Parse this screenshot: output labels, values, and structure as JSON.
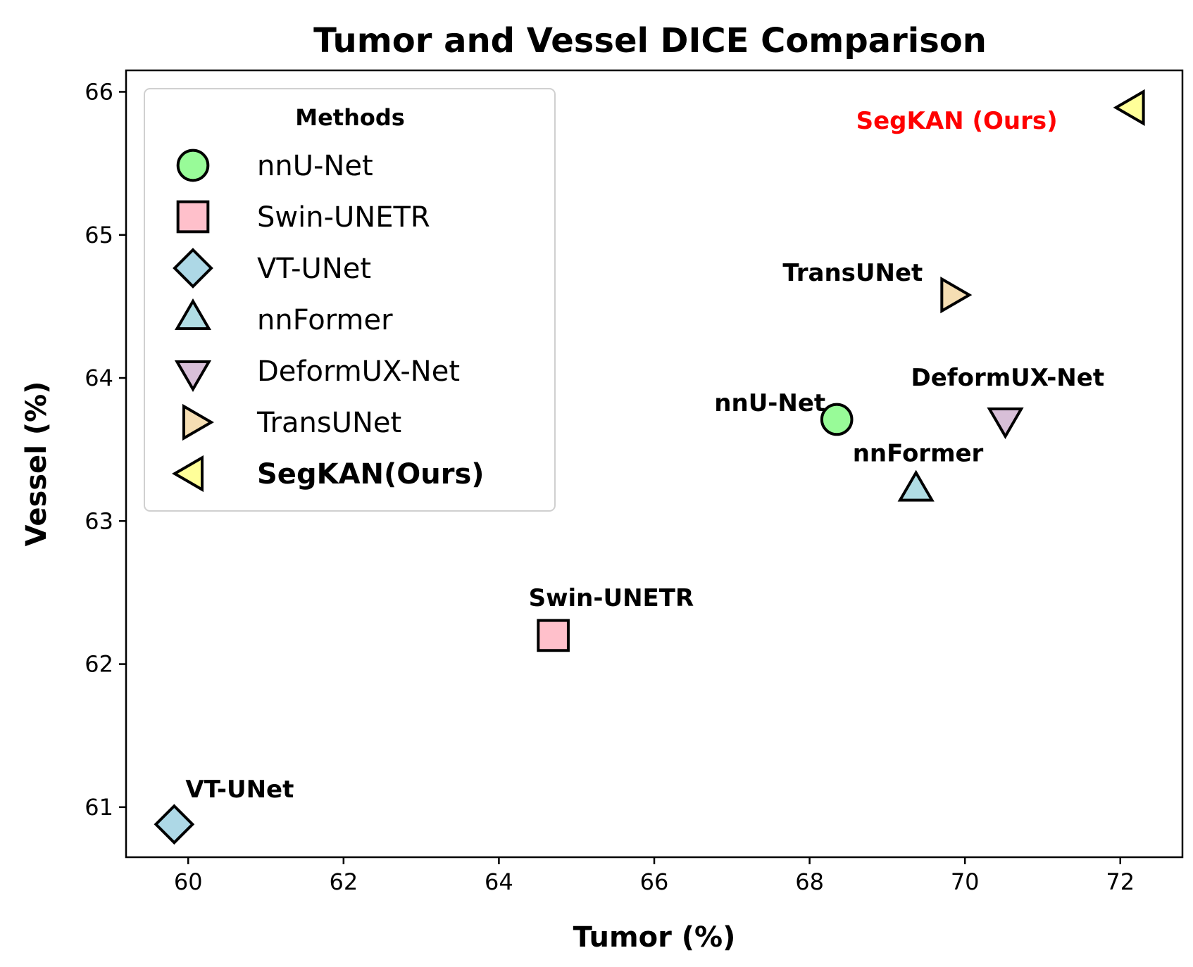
{
  "chart_data": {
    "type": "scatter",
    "title": "Tumor and Vessel DICE Comparison",
    "xlabel": "Tumor (%)",
    "ylabel": "Vessel (%)",
    "xlim": [
      59.2,
      72.8
    ],
    "ylim": [
      60.65,
      66.15
    ],
    "xticks": [
      60,
      62,
      64,
      66,
      68,
      70,
      72
    ],
    "yticks": [
      61,
      62,
      63,
      64,
      65,
      66
    ],
    "grid": false,
    "legend": {
      "title": "Methods",
      "placement": "upper-left"
    },
    "series": [
      {
        "name": "nnU-Net",
        "marker": "circle",
        "color": "#98fb98",
        "x": 68.35,
        "y": 63.71,
        "annotation": "nnU-Net",
        "annotation_color": "#000000",
        "label_bold": false
      },
      {
        "name": "Swin-UNETR",
        "marker": "square",
        "color": "#ffc0cb",
        "x": 64.7,
        "y": 62.2,
        "annotation": "Swin-UNETR",
        "annotation_color": "#000000",
        "label_bold": false
      },
      {
        "name": "VT-UNet",
        "marker": "diamond",
        "color": "#add8e6",
        "x": 59.82,
        "y": 60.88,
        "annotation": "VT-UNet",
        "annotation_color": "#000000",
        "label_bold": false
      },
      {
        "name": "nnFormer",
        "marker": "triangle-up",
        "color": "#b0dde4",
        "x": 69.37,
        "y": 63.21,
        "annotation": "nnFormer",
        "annotation_color": "#000000",
        "label_bold": false
      },
      {
        "name": "DeformUX-Net",
        "marker": "triangle-down",
        "color": "#d8bfd8",
        "x": 70.52,
        "y": 63.72,
        "annotation": "DeformUX-Net",
        "annotation_color": "#000000",
        "label_bold": false
      },
      {
        "name": "TransUNet",
        "marker": "triangle-right",
        "color": "#f5deb3",
        "x": 69.82,
        "y": 64.58,
        "annotation": "TransUNet",
        "annotation_color": "#000000",
        "label_bold": false
      },
      {
        "name": "SegKAN(Ours)",
        "marker": "triangle-left",
        "color": "#ffff99",
        "x": 72.18,
        "y": 65.89,
        "annotation": "SegKAN (Ours)",
        "annotation_color": "#ff0000",
        "label_bold": true
      }
    ]
  }
}
